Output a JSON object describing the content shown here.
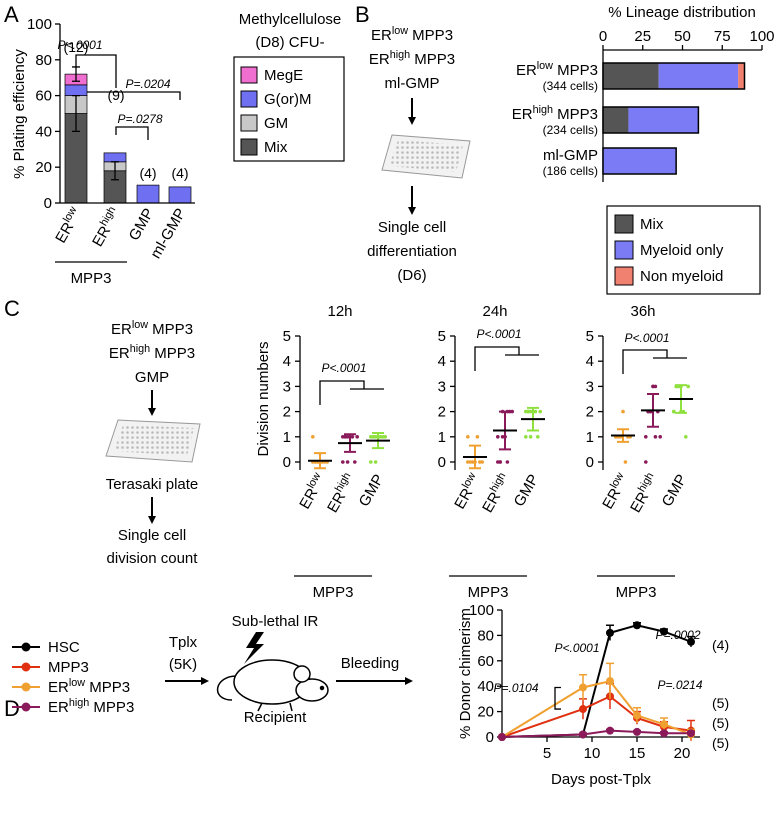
{
  "panel_labels": [
    "A",
    "B",
    "C",
    "D"
  ],
  "diagram_b": {
    "inputs": [
      "ERlow MPP3",
      "ERhigh MPP3",
      "ml-GMP"
    ],
    "output": [
      "Single cell",
      "differentiation",
      "(D6)"
    ]
  },
  "diagram_c": {
    "inputs": [
      "ERlow MPP3",
      "ERhigh MPP3",
      "GMP"
    ],
    "plate": "Terasaki plate",
    "output": [
      "Single cell",
      "division count"
    ]
  },
  "diagram_d": {
    "transplant": [
      "Tplx",
      "(5K)"
    ],
    "treatment": "Sub-lethal IR",
    "host": "Recipient",
    "readout": "Bleeding"
  },
  "chart_data": [
    {
      "type": "bar",
      "stacked": true,
      "ylabel": "% Plating efficiency",
      "categories": [
        "ERlow",
        "ERhigh",
        "GMP",
        "ml-GMP"
      ],
      "group_label": "MPP3",
      "n_labels": [
        "(12)",
        "(9)",
        "(4)",
        "(4)"
      ],
      "annotations": [
        "P<.0001",
        "P=.0204",
        "P=.0278"
      ],
      "legend_title": [
        "Methylcellulose",
        "(D8) CFU-"
      ],
      "series": [
        {
          "name": "Mix",
          "color": "#555555",
          "values": [
            50,
            18,
            0,
            0
          ],
          "errors": [
            10,
            5,
            null,
            null
          ]
        },
        {
          "name": "GM",
          "color": "#c8c8c8",
          "values": [
            10,
            5,
            0,
            0
          ]
        },
        {
          "name": "G(or)M",
          "color": "#6f6ff2",
          "values": [
            6,
            5,
            10,
            9
          ]
        },
        {
          "name": "MegE",
          "color": "#f06ed0",
          "values": [
            6,
            0,
            0,
            0
          ],
          "errors": [
            4,
            null,
            null,
            null
          ]
        }
      ],
      "ylim": [
        0,
        100
      ],
      "yticks": [
        0,
        20,
        40,
        60,
        80,
        100
      ]
    },
    {
      "type": "barh",
      "stacked": true,
      "title": "% Lineage distribution",
      "categories": [
        "ERlow MPP3",
        "ERhigh MPP3",
        "ml-GMP"
      ],
      "sublabels": [
        "(344 cells)",
        "(234 cells)",
        "(186 cells)"
      ],
      "series": [
        {
          "name": "Mix",
          "color": "#555555",
          "values": [
            35,
            16,
            0
          ]
        },
        {
          "name": "Myeloid only",
          "color": "#7b7bf5",
          "values": [
            50,
            44,
            46
          ]
        },
        {
          "name": "Non myeloid",
          "color": "#f08070",
          "values": [
            4,
            0,
            0
          ]
        }
      ],
      "xlim": [
        0,
        100
      ],
      "xticks": [
        0,
        25,
        50,
        75,
        100
      ]
    },
    {
      "type": "dot",
      "title": "12h",
      "ylabel": "Division numbers",
      "categories": [
        "ERlow",
        "ERhigh",
        "GMP"
      ],
      "group_label": "MPP3",
      "colors": [
        "#f0a030",
        "#8b1a5a",
        "#90e040"
      ],
      "means": [
        0.05,
        0.75,
        0.85
      ],
      "sds": [
        0.3,
        0.35,
        0.3
      ],
      "points": [
        [
          0,
          0,
          0,
          0,
          0,
          0,
          0,
          1,
          0,
          0
        ],
        [
          0,
          1,
          1,
          1,
          1,
          0,
          1,
          1,
          1,
          0
        ],
        [
          0,
          1,
          1,
          1,
          1,
          1,
          1,
          1,
          1,
          0
        ]
      ],
      "annotations": [
        "P<.0001"
      ],
      "ylim": [
        0,
        5
      ],
      "yticks": [
        0,
        1,
        2,
        3,
        4,
        5
      ]
    },
    {
      "type": "dot",
      "title": "24h",
      "categories": [
        "ERlow",
        "ERhigh",
        "GMP"
      ],
      "group_label": "MPP3",
      "colors": [
        "#f0a030",
        "#8b1a5a",
        "#90e040"
      ],
      "means": [
        0.2,
        1.25,
        1.7
      ],
      "sds": [
        0.45,
        0.75,
        0.45
      ],
      "points": [
        [
          0,
          0,
          0,
          0,
          1,
          0,
          0,
          1
        ],
        [
          0,
          0,
          1,
          1,
          2,
          2,
          2,
          1,
          0,
          2,
          1,
          0
        ],
        [
          1,
          2,
          2,
          2,
          2,
          1,
          2,
          2,
          2,
          1,
          2
        ]
      ],
      "annotations": [
        "P<.0001"
      ],
      "ylim": [
        0,
        5
      ],
      "yticks": [
        0,
        1,
        2,
        3,
        4,
        5
      ]
    },
    {
      "type": "dot",
      "title": "36h",
      "categories": [
        "ERlow",
        "ERhigh",
        "GMP"
      ],
      "group_label": "MPP3",
      "colors": [
        "#f0a030",
        "#8b1a5a",
        "#90e040"
      ],
      "means": [
        1.05,
        2.05,
        2.5
      ],
      "sds": [
        0.25,
        0.65,
        0.55
      ],
      "points": [
        [
          1,
          1,
          1,
          2,
          0,
          1,
          1,
          1
        ],
        [
          1,
          2,
          2,
          3,
          3,
          2,
          1,
          0,
          2,
          2,
          3,
          1
        ],
        [
          2,
          3,
          3,
          3,
          2,
          1,
          3,
          2,
          3,
          3,
          2
        ]
      ],
      "annotations": [
        "P<.0001"
      ],
      "ylim": [
        0,
        5
      ],
      "yticks": [
        0,
        1,
        2,
        3,
        4,
        5
      ]
    },
    {
      "type": "line",
      "xlabel": "Days post-Tplx",
      "ylabel": "% Donor chimerism",
      "x": [
        0,
        9,
        12,
        15,
        18,
        21
      ],
      "series": [
        {
          "name": "HSC",
          "color": "#000000",
          "values": [
            0,
            2,
            82,
            88,
            83,
            75
          ],
          "errors": [
            0,
            0,
            6,
            2,
            2,
            4
          ]
        },
        {
          "name": "MPP3",
          "color": "#e03010",
          "values": [
            0,
            22,
            32,
            15,
            8,
            5
          ],
          "errors": [
            0,
            8,
            10,
            5,
            4,
            8
          ]
        },
        {
          "name": "ERlow MPP3",
          "color": "#f0a030",
          "values": [
            0,
            39,
            44,
            17,
            10,
            2
          ],
          "errors": [
            0,
            10,
            14,
            6,
            5,
            4
          ]
        },
        {
          "name": "ERhigh MPP3",
          "color": "#8b1a5a",
          "values": [
            0,
            2,
            5,
            4,
            3,
            3
          ],
          "errors": [
            0,
            1,
            1,
            1,
            1,
            1
          ]
        }
      ],
      "n_labels": [
        "(4)",
        "(5)",
        "(5)",
        "(5)"
      ],
      "annotations": [
        "P<.0001",
        "P=.0002",
        "P=.0104",
        "P=.0214"
      ],
      "xlim": [
        0,
        22
      ],
      "xticks": [
        5,
        10,
        15,
        20
      ],
      "ylim": [
        0,
        100
      ],
      "yticks": [
        0,
        20,
        40,
        60,
        80,
        100
      ]
    }
  ]
}
